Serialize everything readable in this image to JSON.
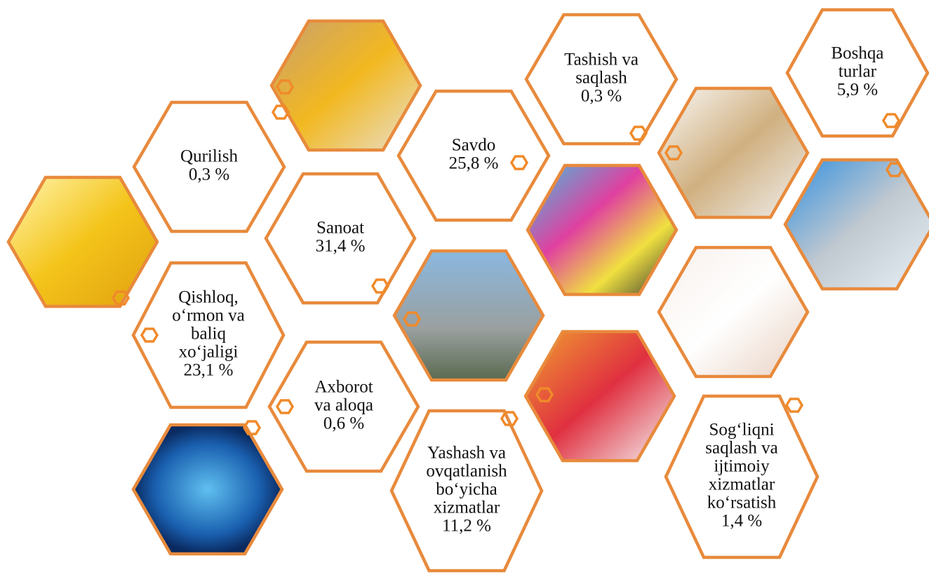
{
  "cells": [
    {
      "lines": [
        "Qurilish"
      ],
      "value": "0,3 %"
    },
    {
      "lines": [
        "Sanoat"
      ],
      "value": "31,4 %"
    },
    {
      "lines": [
        "Qishloq,",
        "o‘rmon va",
        "baliq",
        "xo‘jaligi"
      ],
      "value": "23,1 %"
    },
    {
      "lines": [
        "Axborot",
        "va aloqa"
      ],
      "value": "0,6 %"
    },
    {
      "lines": [
        "Savdo"
      ],
      "value": "25,8 %"
    },
    {
      "lines": [
        "Tashish va",
        "saqlash"
      ],
      "value": "0,3 %"
    },
    {
      "lines": [
        "Yashash va",
        "ovqatlanish",
        "bo‘yicha",
        "xizmatlar"
      ],
      "value": "11,2 %"
    },
    {
      "lines": [
        "Boshqa",
        "turlar"
      ],
      "value": "5,9 %"
    },
    {
      "lines": [
        "Sog‘liqni",
        "saqlash va",
        "ijtimoiy",
        "xizmatlar",
        "ko‘rsatish"
      ],
      "value": "1,4 %"
    }
  ]
}
